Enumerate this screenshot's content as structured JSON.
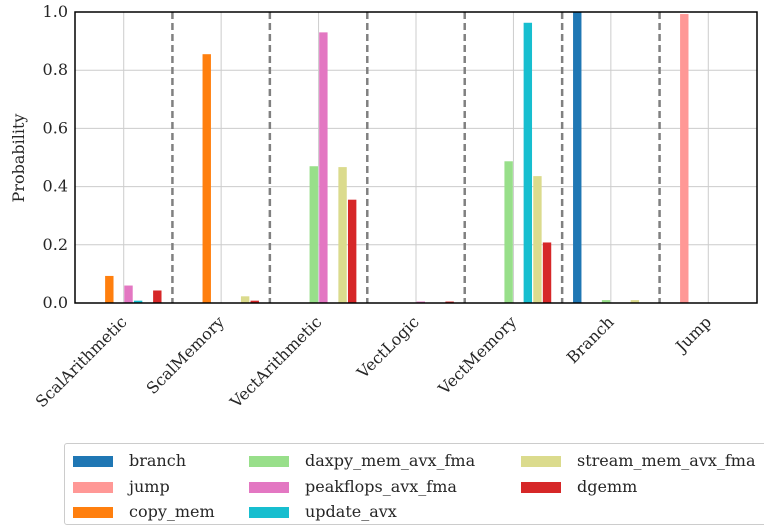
{
  "chart_data": {
    "type": "bar",
    "title": "",
    "xlabel": "",
    "ylabel": "Probability",
    "ylim": [
      0,
      1.0
    ],
    "yticks": [
      "0.0",
      "0.2",
      "0.4",
      "0.6",
      "0.8",
      "1.0"
    ],
    "grid": true,
    "legend_position": "bottom",
    "categories": [
      "ScalArithmetic",
      "ScalMemory",
      "VectArithmetic",
      "VectLogic",
      "VectMemory",
      "Branch",
      "Jump"
    ],
    "series": [
      {
        "name": "branch",
        "color": "#1f77b4",
        "values": [
          0,
          0,
          0,
          0,
          0,
          1.0,
          0
        ]
      },
      {
        "name": "jump",
        "color": "#ff9896",
        "values": [
          0,
          0,
          0,
          0,
          0,
          0,
          0.993
        ]
      },
      {
        "name": "copy_mem",
        "color": "#ff7f0e",
        "values": [
          0.093,
          0.855,
          0,
          0,
          0,
          0,
          0
        ]
      },
      {
        "name": "daxpy_mem_avx_fma",
        "color": "#98df8a",
        "values": [
          0,
          0,
          0.47,
          0,
          0.487,
          0.01,
          0
        ]
      },
      {
        "name": "peakflops_avx_fma",
        "color": "#e377c2",
        "values": [
          0.06,
          0,
          0.93,
          0.005,
          0,
          0,
          0
        ]
      },
      {
        "name": "update_avx",
        "color": "#17becf",
        "values": [
          0.008,
          0,
          0,
          0,
          0.963,
          0,
          0
        ]
      },
      {
        "name": "stream_mem_avx_fma",
        "color": "#dbdb8d",
        "values": [
          0,
          0.023,
          0.467,
          0,
          0.436,
          0.01,
          0
        ]
      },
      {
        "name": "dgemm",
        "color": "#d62728",
        "values": [
          0.043,
          0.008,
          0.355,
          0.005,
          0.208,
          0,
          0
        ]
      }
    ],
    "legend_columns": [
      [
        "branch",
        "jump",
        "copy_mem"
      ],
      [
        "daxpy_mem_avx_fma",
        "peakflops_avx_fma",
        "update_avx"
      ],
      [
        "stream_mem_avx_fma",
        "dgemm"
      ]
    ]
  }
}
